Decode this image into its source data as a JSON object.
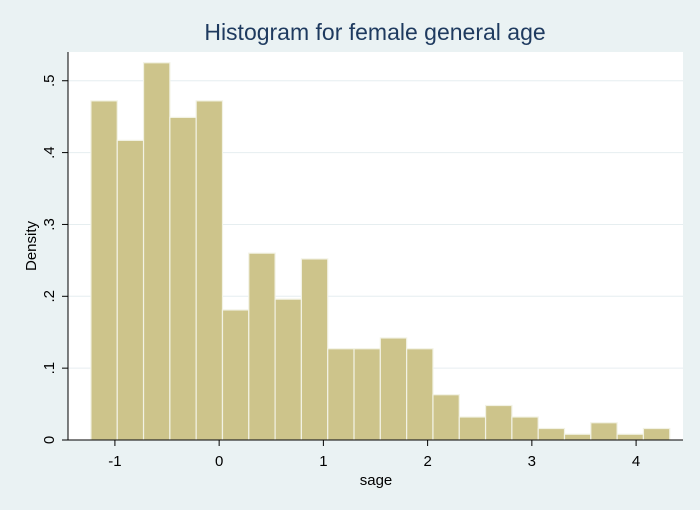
{
  "chart_data": {
    "type": "bar",
    "title": "Histogram for female general age",
    "xlabel": "sage",
    "ylabel": "Density",
    "xlim": [
      -1.45,
      4.45
    ],
    "ylim": [
      0,
      0.54
    ],
    "xticks": [
      -1,
      0,
      1,
      2,
      3,
      4
    ],
    "xtick_labels": [
      "-1",
      "0",
      "1",
      "2",
      "3",
      "4"
    ],
    "yticks": [
      0,
      0.1,
      0.2,
      0.3,
      0.4,
      0.5
    ],
    "ytick_labels": [
      "0",
      ".1",
      ".2",
      ".3",
      ".4",
      ".5"
    ],
    "bin_start": -1.23,
    "bin_width": 0.2524,
    "values": [
      0.472,
      0.417,
      0.525,
      0.449,
      0.472,
      0.181,
      0.26,
      0.196,
      0.252,
      0.127,
      0.127,
      0.142,
      0.127,
      0.063,
      0.032,
      0.048,
      0.032,
      0.016,
      0.008,
      0.024,
      0.008,
      0.016
    ],
    "grid": true,
    "colors": {
      "bar_fill": "#cdc48b",
      "bar_edge": "#f2f2e4",
      "plot_background": "#ffffff",
      "page_background": "#eaf2f3",
      "title": "#1e3a5f"
    }
  }
}
